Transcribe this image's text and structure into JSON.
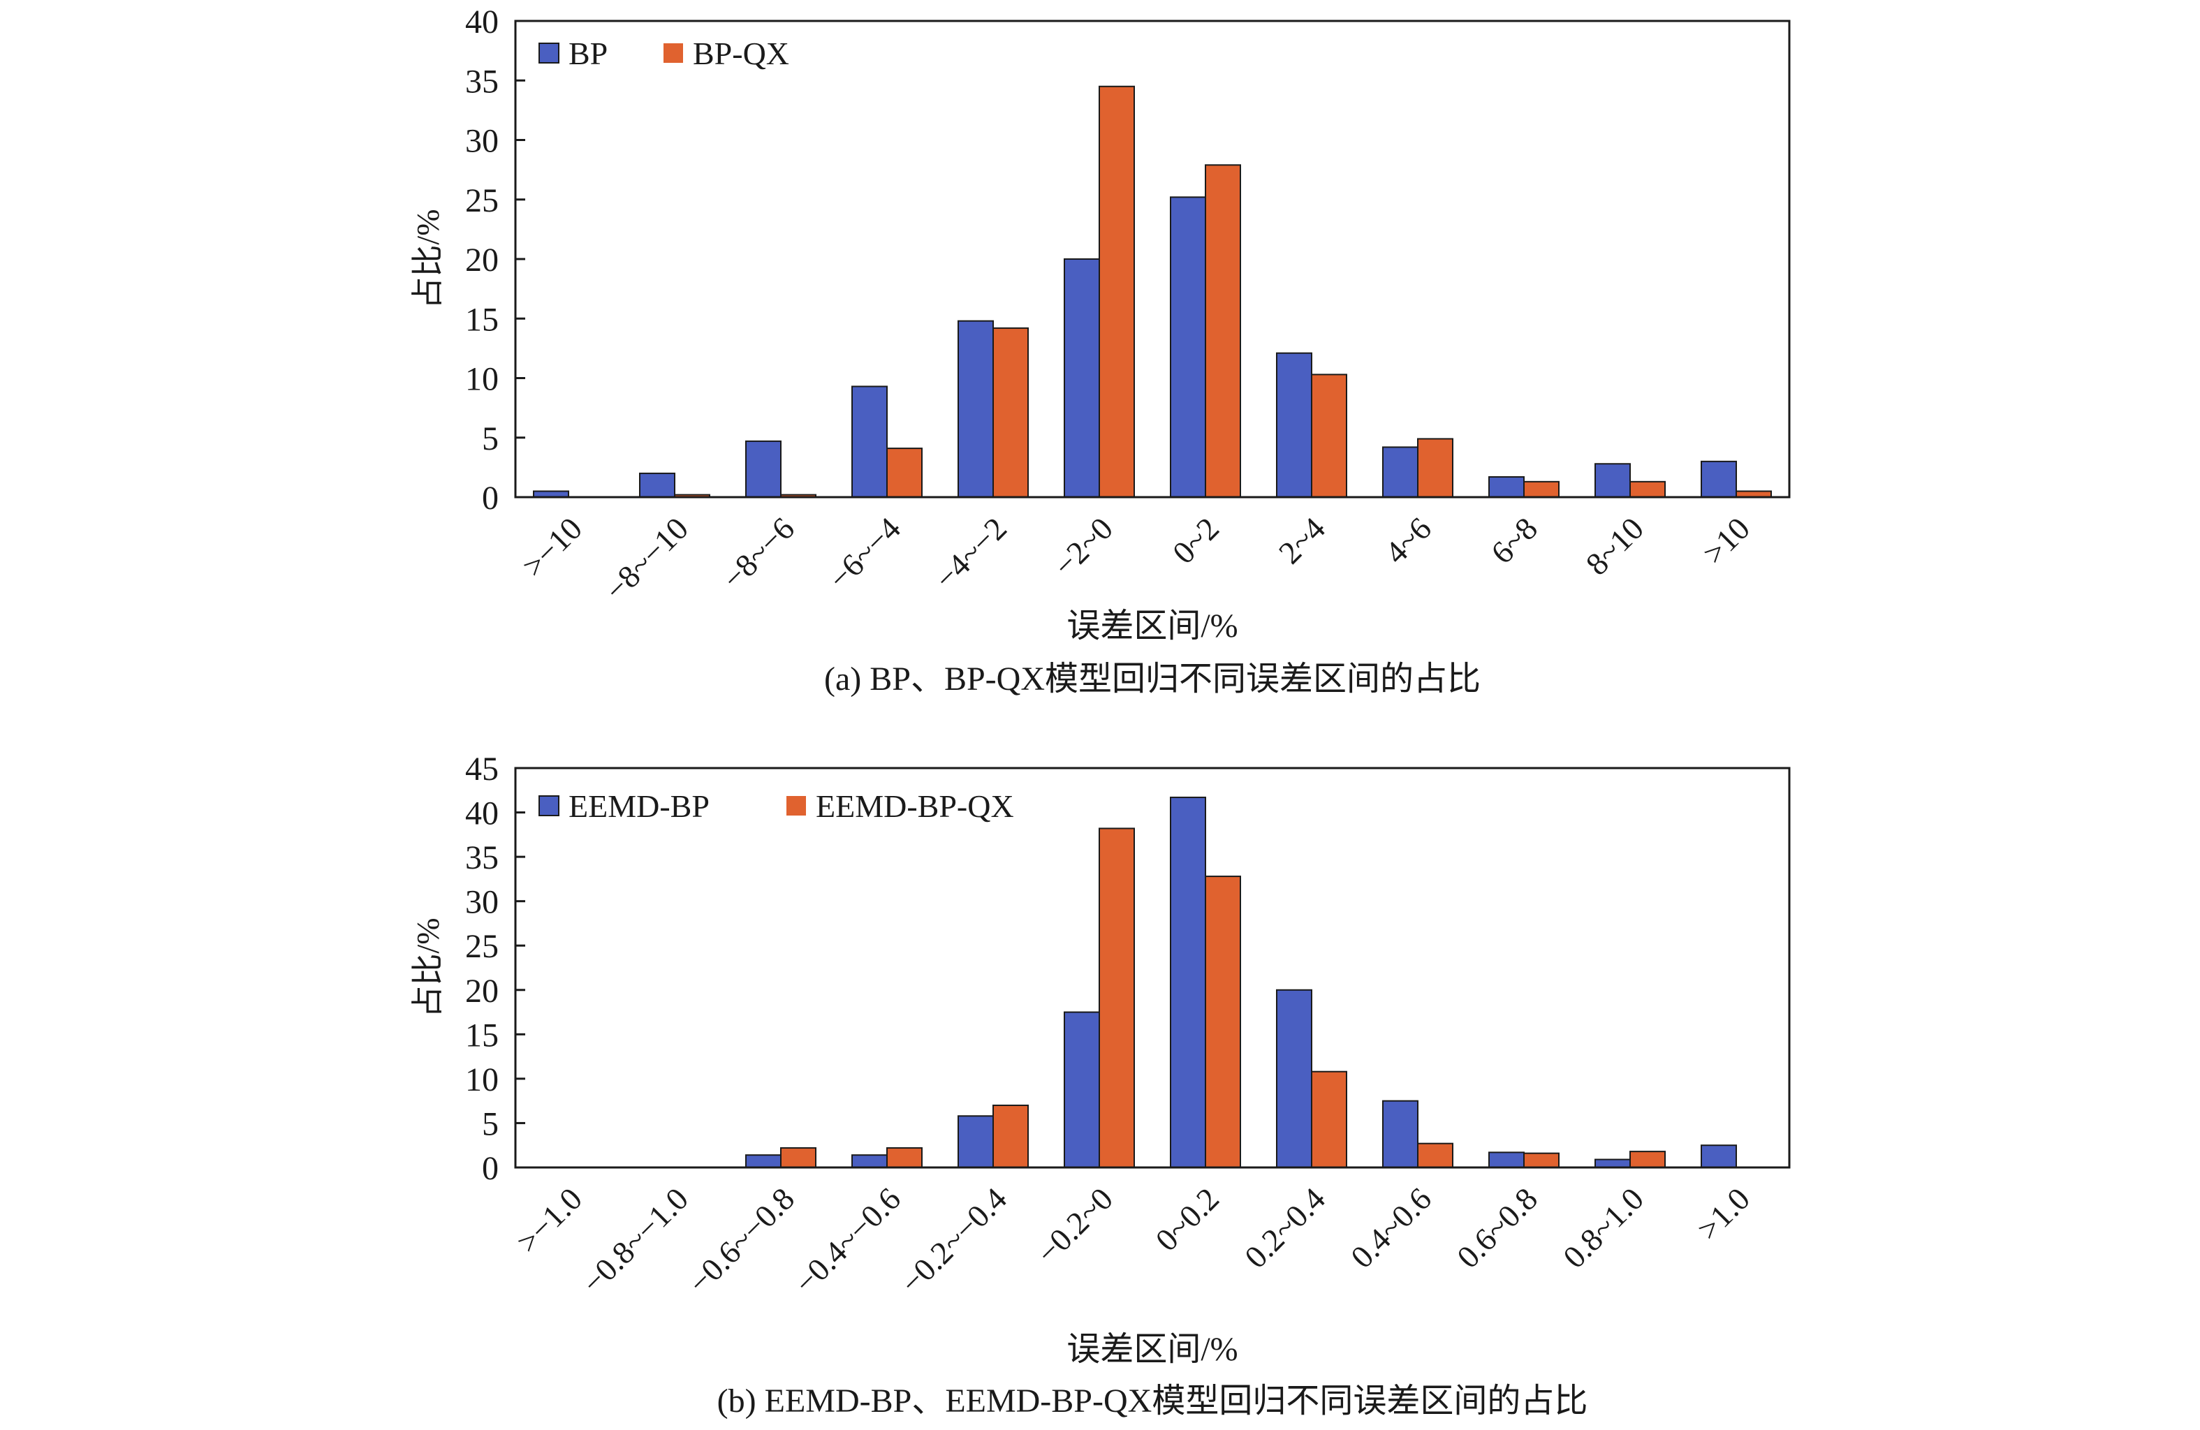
{
  "colors": {
    "series_a": "#4a5fc1",
    "series_b": "#e0622f",
    "axis": "#1a1a1a",
    "background": "#ffffff"
  },
  "chart_data": [
    {
      "type": "bar",
      "title": "(a) BP、BP-QX模型回归不同误差区间的占比",
      "xlabel": "误差区间/%",
      "ylabel": "占比/%",
      "ylim": [
        0,
        40
      ],
      "yticks": [
        0,
        5,
        10,
        15,
        20,
        25,
        30,
        35,
        40
      ],
      "grid": false,
      "legend_position": "top-left",
      "categories": [
        ">−10",
        "−8~−10",
        "−8~−6",
        "−6~−4",
        "−4~−2",
        "−2~0",
        "0~2",
        "2~4",
        "4~6",
        "6~8",
        "8~10",
        ">10"
      ],
      "series": [
        {
          "name": "BP",
          "values": [
            0.5,
            2.0,
            4.7,
            9.3,
            14.8,
            20.0,
            25.2,
            12.1,
            4.2,
            1.7,
            2.8,
            3.0
          ]
        },
        {
          "name": "BP-QX",
          "values": [
            0.0,
            0.2,
            0.2,
            4.1,
            14.2,
            34.5,
            27.9,
            10.3,
            4.9,
            1.3,
            1.3,
            0.5
          ]
        }
      ]
    },
    {
      "type": "bar",
      "title": "(b) EEMD-BP、EEMD-BP-QX模型回归不同误差区间的占比",
      "xlabel": "误差区间/%",
      "ylabel": "占比/%",
      "ylim": [
        0,
        45
      ],
      "yticks": [
        0,
        5,
        10,
        15,
        20,
        25,
        30,
        35,
        40,
        45
      ],
      "grid": false,
      "legend_position": "top-left",
      "categories": [
        ">−1.0",
        "−0.8~−1.0",
        "−0.6~−0.8",
        "−0.4~−0.6",
        "−0.2~−0.4",
        "−0.2~0",
        "0~0.2",
        "0.2~0.4",
        "0.4~0.6",
        "0.6~0.8",
        "0.8~1.0",
        ">1.0"
      ],
      "series": [
        {
          "name": "EEMD-BP",
          "values": [
            0.0,
            0.0,
            1.4,
            1.4,
            5.8,
            17.5,
            41.7,
            20.0,
            7.5,
            1.7,
            0.9,
            2.5
          ]
        },
        {
          "name": "EEMD-BP-QX",
          "values": [
            0.0,
            0.0,
            2.2,
            2.2,
            7.0,
            38.2,
            32.8,
            10.8,
            2.7,
            1.6,
            1.8,
            0.0
          ]
        }
      ]
    }
  ]
}
